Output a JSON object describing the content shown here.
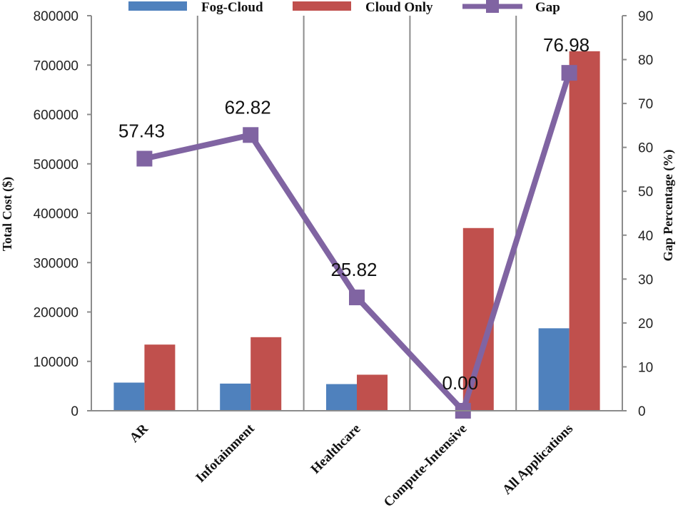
{
  "chart_data": {
    "type": "bar",
    "title": "",
    "categories": [
      "AR",
      "Infotainment",
      "Healthcare",
      "Compute-Intensive",
      "All Applications"
    ],
    "series": [
      {
        "name": "Fog-Cloud",
        "axis": "left",
        "kind": "bar",
        "color": "#4F81BD",
        "values": [
          57000,
          55000,
          54000,
          0,
          167000
        ]
      },
      {
        "name": "Cloud Only",
        "axis": "left",
        "kind": "bar",
        "color": "#C0504D",
        "values": [
          134000,
          149000,
          73000,
          370000,
          728000
        ]
      },
      {
        "name": "Gap",
        "axis": "right",
        "kind": "line",
        "color": "#8064A2",
        "values": [
          57.43,
          62.82,
          25.82,
          0.0,
          76.98
        ],
        "labels": [
          "57.43",
          "62.82",
          "25.82",
          "0.00",
          "76.98"
        ]
      }
    ],
    "y_left": {
      "label": "Total Cost ($)",
      "min": 0,
      "max": 800000,
      "ticks": [
        "0",
        "100000",
        "200000",
        "300000",
        "400000",
        "500000",
        "600000",
        "700000",
        "800000"
      ]
    },
    "y_right": {
      "label": "Gap Percentage (%)",
      "min": 0,
      "max": 90,
      "ticks": [
        "0",
        "10",
        "20",
        "30",
        "40",
        "50",
        "60",
        "70",
        "80",
        "90"
      ]
    },
    "legend": [
      "Fog-Cloud",
      "Cloud Only",
      "Gap"
    ],
    "legend_position": "top",
    "grid": "vertical"
  }
}
